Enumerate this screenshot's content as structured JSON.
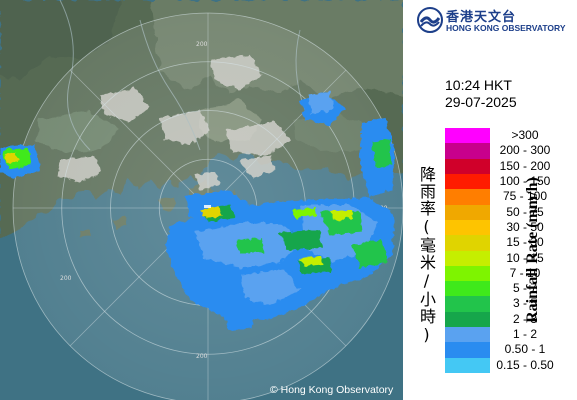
{
  "logo": {
    "name_cn": "香港天文台",
    "name_en": "HONG KONG OBSERVATORY",
    "icon": "hko-logo-icon"
  },
  "time": "10:24 HKT",
  "date": "29-07-2025",
  "legend": {
    "title_cn": "降雨率(毫米/小時)",
    "title_en": "Rainfall Rate (mm/h)",
    "items": [
      {
        "label": ">300",
        "color": "#ff00ff"
      },
      {
        "label": "200 - 300",
        "color": "#c8008c"
      },
      {
        "label": "150 - 200",
        "color": "#d0002a"
      },
      {
        "label": "100 - 150",
        "color": "#ff1b00"
      },
      {
        "label": "75 - 100",
        "color": "#ff7e00"
      },
      {
        "label": "50 - 75",
        "color": "#f0a800"
      },
      {
        "label": "30 - 50",
        "color": "#fec400"
      },
      {
        "label": "15 - 30",
        "color": "#e0d400"
      },
      {
        "label": "10 - 15",
        "color": "#c5ee00"
      },
      {
        "label": "7 - 10",
        "color": "#7ef400"
      },
      {
        "label": "5 - 7",
        "color": "#3fe91b"
      },
      {
        "label": "3 - 5",
        "color": "#22c44b"
      },
      {
        "label": "2 - 3",
        "color": "#16a64b"
      },
      {
        "label": "1 - 2",
        "color": "#5aa2f0"
      },
      {
        "label": "0.50 - 1",
        "color": "#2a8cf0"
      },
      {
        "label": "0.15 - 0.50",
        "color": "#44c8f4"
      }
    ]
  },
  "map": {
    "range_labels": [
      "200",
      "200",
      "200",
      "200"
    ],
    "copyright": "© Hong Kong Observatory"
  }
}
